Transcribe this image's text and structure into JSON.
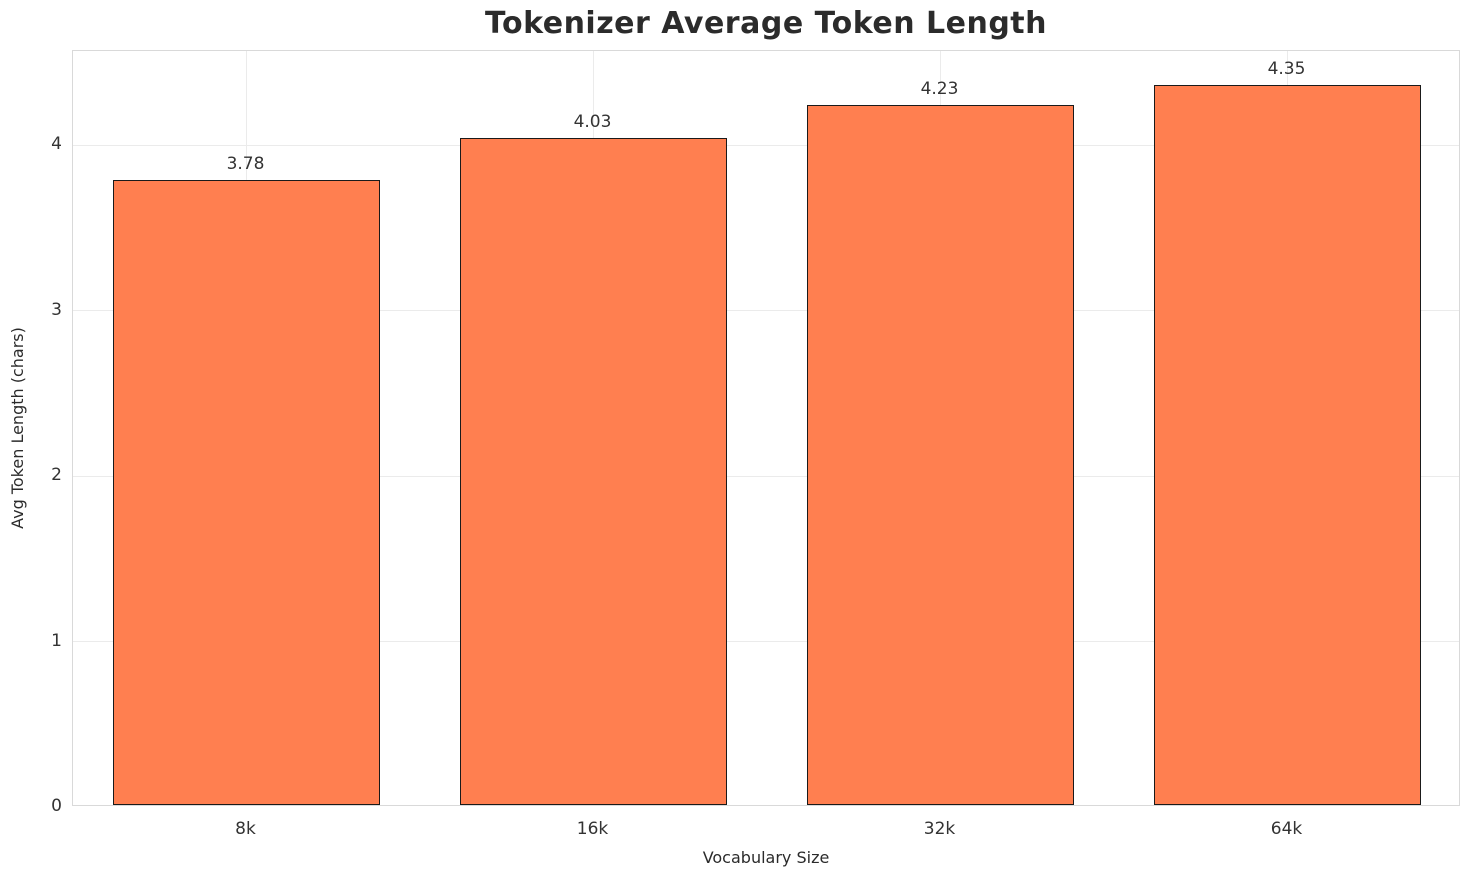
{
  "chart_data": {
    "type": "bar",
    "title": "Tokenizer Average Token Length",
    "xlabel": "Vocabulary Size",
    "ylabel": "Avg Token Length (chars)",
    "categories": [
      "8k",
      "16k",
      "32k",
      "64k"
    ],
    "values": [
      3.78,
      4.03,
      4.23,
      4.35
    ],
    "value_labels": [
      "3.78",
      "4.03",
      "4.23",
      "4.35"
    ],
    "ylim": [
      0,
      4.57
    ],
    "yticks": [
      0,
      1,
      2,
      3,
      4
    ],
    "grid": true,
    "legend": "none",
    "bar_color": "#FF7F50",
    "bar_edge_color": "#1a1a1a"
  }
}
